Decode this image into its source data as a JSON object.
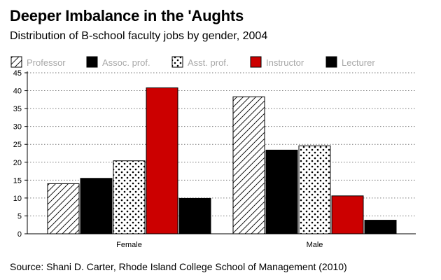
{
  "chart_data": {
    "type": "bar",
    "title": "Deeper Imbalance in the 'Aughts",
    "subtitle": "Distribution of B-school faculty jobs by gender, 2004",
    "source": "Source: Shani D. Carter, Rhode Island College School of Management (2010)",
    "categories": [
      "Female",
      "Male"
    ],
    "series": [
      {
        "name": "Professor",
        "values": [
          14,
          38.3
        ],
        "fill": "hatch"
      },
      {
        "name": "Assoc. prof.",
        "values": [
          15.5,
          23.4
        ],
        "fill": "solid-black"
      },
      {
        "name": "Asst. prof.",
        "values": [
          20.4,
          24.6
        ],
        "fill": "dots"
      },
      {
        "name": "Instructor",
        "values": [
          40.8,
          10.6
        ],
        "fill": "solid-red"
      },
      {
        "name": "Lecturer",
        "values": [
          9.9,
          3.8
        ],
        "fill": "solid-black"
      }
    ],
    "yticks": [
      0,
      5,
      10,
      15,
      20,
      25,
      30,
      35,
      40,
      45
    ],
    "ylim": [
      0,
      45
    ],
    "xlabel": "",
    "ylabel": "",
    "grid": true,
    "legend": "top",
    "colors": {
      "red": "#cc0000",
      "black": "#000000",
      "legend_text": "#a8a8a8"
    }
  }
}
